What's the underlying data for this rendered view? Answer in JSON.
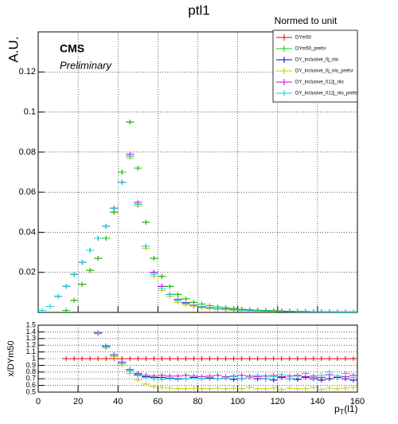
{
  "chart_data": [
    {
      "type": "errorbar",
      "title": "ptl1",
      "subtitle": "Normed to unit",
      "y_label": "A.U.",
      "annotations": [
        "CMS",
        "Preliminary"
      ],
      "x": [
        2,
        6,
        10,
        14,
        18,
        22,
        26,
        30,
        34,
        38,
        42,
        46,
        50,
        54,
        58,
        62,
        66,
        70,
        74,
        78,
        82,
        86,
        90,
        94,
        98,
        102,
        106,
        110,
        114,
        118,
        122,
        126,
        130,
        134,
        138,
        142,
        146,
        150,
        154,
        158
      ],
      "xlim": [
        0,
        160
      ],
      "xticks": [
        0,
        20,
        40,
        60,
        80,
        100,
        120,
        140,
        160
      ],
      "ylim": [
        0,
        0.14
      ],
      "yticks": [
        0.02,
        0.04,
        0.06,
        0.08,
        0.1,
        0.12
      ],
      "grid": true,
      "legend": "upper right",
      "series": [
        {
          "name": "DYm50",
          "color": "#e00000",
          "values": [
            null,
            null,
            null,
            0.001,
            0.006,
            0.014,
            0.021,
            0.027,
            0.037,
            0.05,
            0.07,
            0.095,
            0.072,
            0.045,
            0.027,
            0.018,
            0.013,
            0.009,
            0.0068,
            0.005,
            0.0042,
            0.0034,
            0.0028,
            0.0023,
            0.0019,
            0.0016,
            0.0013,
            0.0011,
            0.001,
            0.0009,
            0.0007,
            0.0006,
            0.0006,
            0.0005,
            0.0004,
            0.0004,
            0.0004,
            0.0003,
            0.0003,
            0.0003
          ]
        },
        {
          "name": "DYm50_prefsr",
          "color": "#00d000",
          "values": [
            null,
            null,
            null,
            0.001,
            0.006,
            0.014,
            0.021,
            0.027,
            0.037,
            0.05,
            0.07,
            0.095,
            0.072,
            0.045,
            0.027,
            0.018,
            0.013,
            0.009,
            0.0068,
            0.005,
            0.0042,
            0.0034,
            0.0028,
            0.0023,
            0.0019,
            0.0016,
            0.0013,
            0.0011,
            0.001,
            0.0009,
            0.0007,
            0.0006,
            0.0006,
            0.0005,
            0.0004,
            0.0004,
            0.0004,
            0.0003,
            0.0003,
            0.0003
          ]
        },
        {
          "name": "DY_inclusive_0j_nlo",
          "color": "#0000cc",
          "values": [
            0.001,
            0.003,
            0.008,
            0.013,
            0.019,
            0.025,
            0.031,
            0.037,
            0.043,
            0.052,
            0.065,
            0.078,
            0.054,
            0.033,
            0.02,
            0.013,
            0.009,
            0.006,
            0.0045,
            0.0035,
            0.0028,
            0.0023,
            0.0019,
            0.0016,
            0.0013,
            0.0011,
            0.0009,
            0.0008,
            0.0007,
            0.0006,
            0.0005,
            0.0004,
            0.0004,
            0.0003,
            0.0003,
            0.0003,
            0.0002,
            0.0002,
            0.0002,
            0.0002
          ]
        },
        {
          "name": "DY_inclusive_0j_nlo_prefsr",
          "color": "#c8c800",
          "values": [
            0.001,
            0.003,
            0.008,
            0.013,
            0.019,
            0.025,
            0.031,
            0.037,
            0.043,
            0.052,
            0.065,
            0.077,
            0.053,
            0.032,
            0.018,
            0.011,
            0.008,
            0.005,
            0.0038,
            0.0029,
            0.0023,
            0.0019,
            0.0016,
            0.0013,
            0.0011,
            0.0009,
            0.0008,
            0.0007,
            0.0006,
            0.0005,
            0.0004,
            0.0004,
            0.0003,
            0.0003,
            0.0003,
            0.0002,
            0.0002,
            0.0002,
            0.0002,
            0.0002
          ]
        },
        {
          "name": "DY_inclusive_012j_nlo",
          "color": "#d000d0",
          "values": [
            0.001,
            0.003,
            0.008,
            0.013,
            0.019,
            0.025,
            0.031,
            0.037,
            0.043,
            0.052,
            0.065,
            0.079,
            0.055,
            0.033,
            0.02,
            0.013,
            0.009,
            0.0065,
            0.005,
            0.0037,
            0.003,
            0.0025,
            0.002,
            0.0017,
            0.0014,
            0.0012,
            0.001,
            0.0008,
            0.0007,
            0.0006,
            0.0005,
            0.0005,
            0.0004,
            0.0004,
            0.0003,
            0.0003,
            0.0003,
            0.0002,
            0.0002,
            0.0002
          ]
        },
        {
          "name": "DY_inclusive_012j_nlo_prefsr",
          "color": "#00d8d8",
          "values": [
            0.001,
            0.003,
            0.008,
            0.013,
            0.019,
            0.025,
            0.031,
            0.037,
            0.043,
            0.052,
            0.065,
            0.078,
            0.054,
            0.033,
            0.019,
            0.012,
            0.009,
            0.006,
            0.0047,
            0.0035,
            0.0029,
            0.0024,
            0.0019,
            0.0016,
            0.0013,
            0.0011,
            0.0009,
            0.0008,
            0.0007,
            0.0006,
            0.0005,
            0.0004,
            0.0004,
            0.0004,
            0.0003,
            0.0003,
            0.0003,
            0.0002,
            0.0002,
            0.0002
          ]
        }
      ]
    },
    {
      "type": "errorbar",
      "y_label": "x/DYm50",
      "x_label": [
        "p",
        "T",
        "(l1)"
      ],
      "xlim": [
        0,
        160
      ],
      "xticks": [
        0,
        20,
        40,
        60,
        80,
        100,
        120,
        140,
        160
      ],
      "ylim": [
        0.5,
        1.5
      ],
      "yticks": [
        0.5,
        0.6,
        0.7,
        0.8,
        0.9,
        1,
        1.1,
        1.2,
        1.3,
        1.4,
        1.5
      ],
      "grid": true,
      "series": [
        {
          "color": "#e00000",
          "values": [
            null,
            null,
            null,
            1,
            1,
            1,
            1,
            1,
            1,
            1,
            1,
            1,
            1,
            1,
            1,
            1,
            1,
            1,
            1,
            1,
            1,
            1,
            1,
            1,
            1,
            1,
            1,
            1,
            1,
            1,
            1,
            1,
            1,
            1,
            1,
            1,
            1,
            1,
            1,
            1
          ]
        },
        {
          "color": "#0000cc",
          "values": [
            null,
            null,
            null,
            null,
            null,
            null,
            null,
            1.38,
            1.18,
            1.05,
            0.93,
            0.82,
            0.76,
            0.73,
            0.72,
            0.72,
            0.71,
            0.7,
            0.7,
            0.72,
            0.7,
            0.71,
            0.7,
            0.71,
            0.69,
            0.7,
            0.72,
            0.7,
            0.7,
            0.68,
            0.72,
            0.7,
            0.69,
            0.72,
            0.7,
            0.68,
            0.7,
            0.72,
            0.7,
            0.68
          ]
        },
        {
          "color": "#c8c800",
          "values": [
            null,
            null,
            null,
            null,
            null,
            null,
            null,
            1.37,
            1.16,
            1.03,
            0.9,
            0.78,
            0.68,
            0.62,
            0.58,
            0.57,
            0.56,
            0.55,
            0.55,
            0.56,
            0.55,
            0.55,
            0.56,
            0.55,
            0.56,
            0.55,
            0.57,
            0.55,
            0.55,
            0.56,
            0.54,
            0.56,
            0.55,
            0.55,
            0.57,
            0.54,
            0.56,
            0.55,
            0.56,
            0.57
          ]
        },
        {
          "color": "#d000d0",
          "values": [
            null,
            null,
            null,
            null,
            null,
            null,
            null,
            1.39,
            1.19,
            1.06,
            0.95,
            0.84,
            0.78,
            0.75,
            0.74,
            0.75,
            0.74,
            0.74,
            0.75,
            0.74,
            0.73,
            0.74,
            0.75,
            0.73,
            0.74,
            0.75,
            0.74,
            0.73,
            0.74,
            0.75,
            0.73,
            0.74,
            0.75,
            0.73,
            0.74,
            0.72,
            0.76,
            0.74,
            0.73,
            0.75
          ]
        },
        {
          "color": "#00d8d8",
          "values": [
            null,
            null,
            null,
            null,
            null,
            null,
            null,
            1.38,
            1.18,
            1.05,
            0.93,
            0.82,
            0.75,
            0.72,
            0.7,
            0.69,
            0.7,
            0.69,
            0.7,
            0.71,
            0.7,
            0.72,
            0.7,
            0.71,
            0.73,
            0.7,
            0.72,
            0.75,
            0.7,
            0.73,
            0.76,
            0.7,
            0.74,
            0.78,
            0.72,
            0.75,
            0.8,
            0.74,
            0.78,
            0.72
          ]
        }
      ]
    }
  ]
}
